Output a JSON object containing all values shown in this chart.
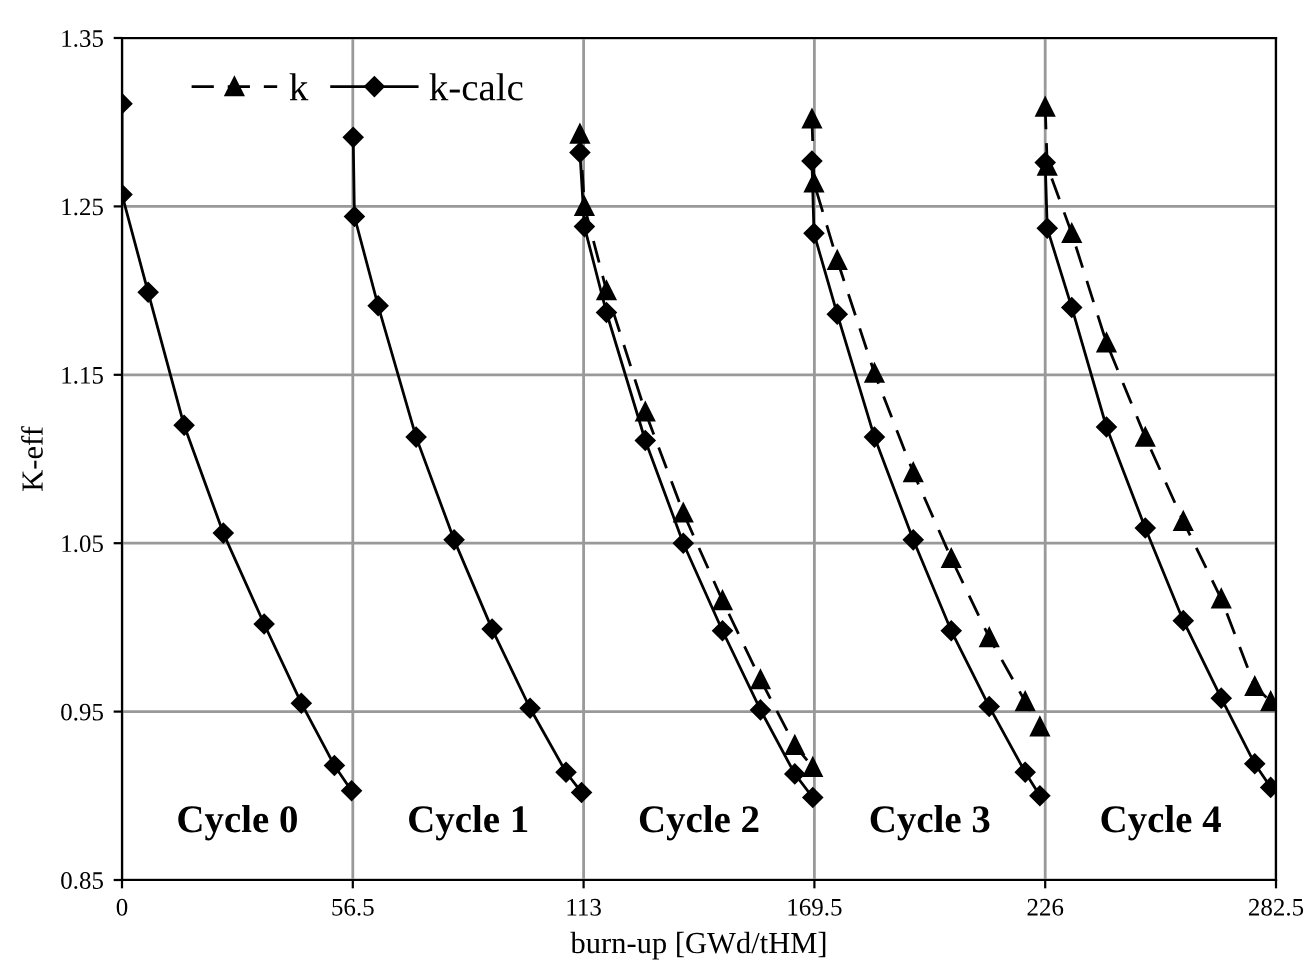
{
  "chart_data": {
    "type": "line",
    "xlabel": "burn-up [GWd/tHM]",
    "ylabel": "K-eff",
    "xlim": [
      0,
      282.5
    ],
    "xticks": [
      0,
      56.5,
      113,
      169.5,
      226,
      282.5
    ],
    "ylim": [
      0.85,
      1.35
    ],
    "yticks": [
      0.85,
      0.95,
      1.05,
      1.15,
      1.25,
      1.35
    ],
    "grid": true,
    "legend": "top left",
    "series": [
      {
        "name": "k",
        "color": "#000000",
        "marker": "triangle",
        "line_style": "dashed",
        "x": [
          112.1,
          113.2,
          118.6,
          128.1,
          137.4,
          147.0,
          156.3,
          164.7,
          169.1,
          null,
          168.9,
          169.4,
          175.1,
          184.2,
          193.7,
          203.0,
          212.3,
          221.1,
          224.7,
          null,
          226,
          226.5,
          232.5,
          241.0,
          250.5,
          259.8,
          269.1,
          277.3,
          281.2
        ],
        "values": [
          1.293,
          1.25,
          1.2,
          1.128,
          1.068,
          1.016,
          0.969,
          0.93,
          0.917,
          null,
          1.302,
          1.264,
          1.218,
          1.151,
          1.092,
          1.041,
          0.994,
          0.956,
          0.941,
          null,
          1.309,
          1.274,
          1.234,
          1.169,
          1.113,
          1.063,
          1.017,
          0.965,
          0.956
        ]
      },
      {
        "name": "k-calc",
        "color": "#000000",
        "marker": "diamond",
        "line_style": "solid",
        "x": [
          0,
          0,
          6.4,
          15.2,
          24.8,
          34.8,
          43.9,
          52.0,
          56.2,
          null,
          56.6,
          56.9,
          62.7,
          72.0,
          81.3,
          90.6,
          99.9,
          108.7,
          112.5,
          null,
          112.1,
          113.2,
          118.6,
          128.1,
          137.4,
          147.0,
          156.3,
          164.7,
          169.1,
          null,
          168.9,
          169.4,
          175.1,
          184.2,
          193.7,
          203.0,
          212.3,
          221.1,
          224.7,
          null,
          226,
          226.5,
          232.5,
          241.0,
          250.5,
          259.8,
          269.1,
          277.3,
          281.2
        ],
        "values": [
          1.311,
          1.257,
          1.199,
          1.12,
          1.056,
          1.002,
          0.955,
          0.918,
          0.903,
          null,
          1.291,
          1.244,
          1.191,
          1.113,
          1.052,
          0.999,
          0.952,
          0.914,
          0.902,
          null,
          1.282,
          1.238,
          1.187,
          1.111,
          1.05,
          0.998,
          0.951,
          0.913,
          0.899,
          null,
          1.277,
          1.234,
          1.186,
          1.113,
          1.052,
          0.998,
          0.953,
          0.914,
          0.9,
          null,
          1.276,
          1.237,
          1.19,
          1.119,
          1.059,
          1.004,
          0.958,
          0.919,
          0.905
        ]
      }
    ],
    "annotations": [
      "Cycle 0",
      "Cycle 1",
      "Cycle 2",
      "Cycle 3",
      "Cycle 4"
    ]
  }
}
